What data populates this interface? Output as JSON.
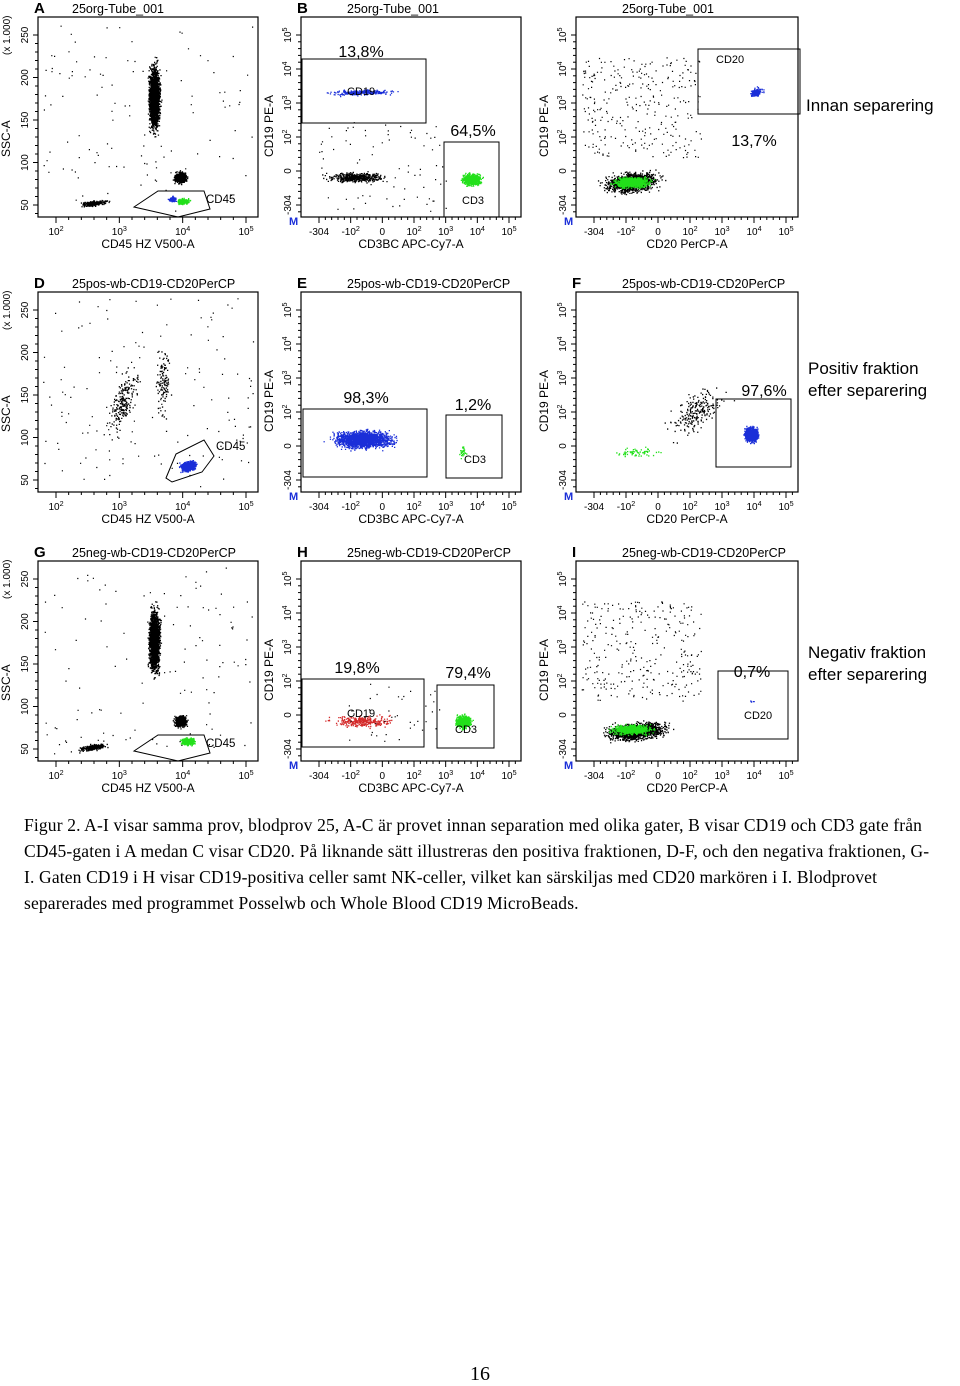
{
  "panels": [
    {
      "letter": "A",
      "title": "25org-Tube_001",
      "type": "ssc",
      "xlabel": "CD45 HZ V500-A",
      "ylabel": "SSC-A",
      "ymult": "(x 1.000)",
      "yticks": [
        "250",
        "200",
        "150",
        "100",
        "50"
      ],
      "xticks": [
        "10^2",
        "10^3",
        "10^4",
        "10^5"
      ],
      "gate": "CD45",
      "variant": "org"
    },
    {
      "letter": "B",
      "title": "25org-Tube_001",
      "type": "cd3cd19",
      "xlabel": "CD3BC APC-Cy7-A",
      "ylabel": "CD19 PE-A",
      "yticks": [
        "10^5",
        "10^4",
        "10^3",
        "10^2",
        "0",
        "-304"
      ],
      "xticks": [
        "-304",
        "-10^2",
        "0",
        "10^2",
        "10^3",
        "10^4",
        "10^5"
      ],
      "gate1": "CD19",
      "gate2": "CD3",
      "pct1": "13,8%",
      "pct2": "64,5%",
      "variant": "org",
      "mlabel": "M"
    },
    {
      "letter": "",
      "title": "25org-Tube_001",
      "type": "cd20cd19",
      "xlabel": "CD20 PerCP-A",
      "ylabel": "CD19 PE-A",
      "yticks": [
        "10^5",
        "10^4",
        "10^3",
        "10^2",
        "0",
        "-304"
      ],
      "xticks": [
        "-304",
        "-10^2",
        "0",
        "10^2",
        "10^3",
        "10^4",
        "10^5"
      ],
      "gate": "CD20",
      "pct": "13,7%",
      "variant": "org",
      "mlabel": "M"
    },
    {
      "letter": "D",
      "title": "25pos-wb-CD19-CD20PerCP",
      "type": "ssc",
      "xlabel": "CD45 HZ V500-A",
      "ylabel": "SSC-A",
      "ymult": "(x 1.000)",
      "yticks": [
        "250",
        "200",
        "150",
        "100",
        "50"
      ],
      "xticks": [
        "10^2",
        "10^3",
        "10^4",
        "10^5"
      ],
      "gate": "CD45",
      "variant": "pos"
    },
    {
      "letter": "E",
      "title": "25pos-wb-CD19-CD20PerCP",
      "type": "cd3cd19",
      "xlabel": "CD3BC APC-Cy7-A",
      "ylabel": "CD19 PE-A",
      "yticks": [
        "10^5",
        "10^4",
        "10^3",
        "10^2",
        "0",
        "-304"
      ],
      "xticks": [
        "-304",
        "-10^2",
        "0",
        "10^2",
        "10^3",
        "10^4",
        "10^5"
      ],
      "gate1": "",
      "gate2": "CD3",
      "pct1": "98,3%",
      "pct2": "1,2%",
      "variant": "pos",
      "mlabel": "M"
    },
    {
      "letter": "F",
      "title": "25pos-wb-CD19-CD20PerCP",
      "type": "cd20cd19",
      "xlabel": "CD20 PerCP-A",
      "ylabel": "CD19 PE-A",
      "yticks": [
        "10^5",
        "10^4",
        "10^3",
        "10^2",
        "0",
        "-304"
      ],
      "xticks": [
        "-304",
        "-10^2",
        "0",
        "10^2",
        "10^3",
        "10^4",
        "10^5"
      ],
      "gate": "",
      "pct": "97,6%",
      "variant": "pos",
      "mlabel": "M"
    },
    {
      "letter": "G",
      "title": "25neg-wb-CD19-CD20PerCP",
      "type": "ssc",
      "xlabel": "CD45 HZ V500-A",
      "ylabel": "SSC-A",
      "ymult": "(x 1.000)",
      "yticks": [
        "250",
        "200",
        "150",
        "100",
        "50"
      ],
      "xticks": [
        "10^2",
        "10^3",
        "10^4",
        "10^5"
      ],
      "gate": "CD45",
      "variant": "neg"
    },
    {
      "letter": "H",
      "title": "25neg-wb-CD19-CD20PerCP",
      "type": "cd3cd19",
      "xlabel": "CD3BC APC-Cy7-A",
      "ylabel": "CD19 PE-A",
      "yticks": [
        "10^5",
        "10^4",
        "10^3",
        "10^2",
        "0",
        "-304"
      ],
      "xticks": [
        "-304",
        "-10^2",
        "0",
        "10^2",
        "10^3",
        "10^4",
        "10^5"
      ],
      "gate1": "CD19",
      "gate2": "CD3",
      "pct1": "19,8%",
      "pct2": "79,4%",
      "variant": "neg",
      "mlabel": "M"
    },
    {
      "letter": "I",
      "title": "25neg-wb-CD19-CD20PerCP",
      "type": "cd20cd19",
      "xlabel": "CD20 PerCP-A",
      "ylabel": "CD19 PE-A",
      "yticks": [
        "10^5",
        "10^4",
        "10^3",
        "10^2",
        "0",
        "-304"
      ],
      "xticks": [
        "-304",
        "-10^2",
        "0",
        "10^2",
        "10^3",
        "10^4",
        "10^5"
      ],
      "gate": "CD20",
      "pct": "0,7%",
      "variant": "neg",
      "mlabel": "M"
    }
  ],
  "row_labels": {
    "row1": "Innan separering",
    "row2_line1": "Positiv fraktion",
    "row2_line2": "efter separering",
    "row3_line1": "Negativ fraktion",
    "row3_line2": "efter separering"
  },
  "caption": "Figur 2. A-I visar samma prov, blodprov 25, A-C är provet innan separation med olika gater, B visar CD19 och CD3 gate från CD45-gaten i A medan C visar CD20. På liknande sätt illustreras den positiva fraktionen, D-F, och den negativa fraktionen, G-I. Gaten CD19 i H visar CD19-positiva celler samt NK-celler, vilket kan särskiljas med CD20 markören i I. Blodprovet separerades med programmet Posselwb och Whole Blood CD19 MicroBeads.",
  "page_number": "16",
  "colors": {
    "black": "#000000",
    "blue": "#1a2ed8",
    "green": "#22e01a",
    "red": "#d42a2a"
  }
}
